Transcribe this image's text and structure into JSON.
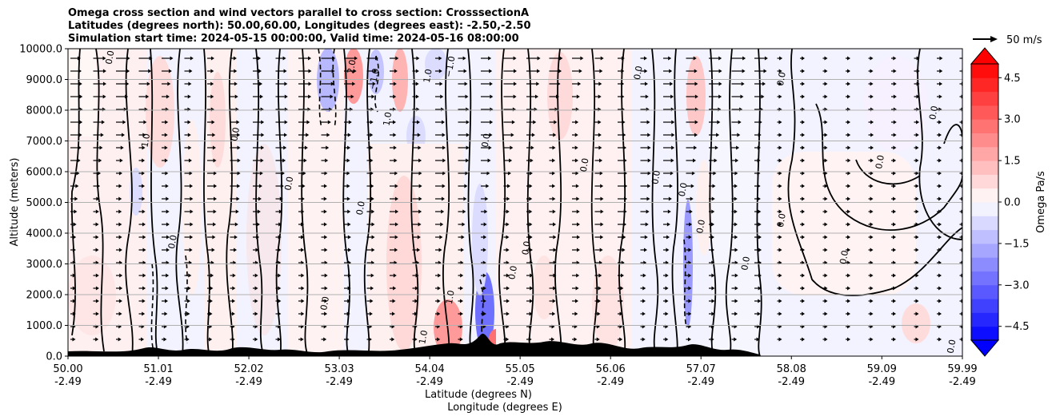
{
  "figure": {
    "title_lines": [
      "Omega cross section and wind vectors parallel to cross section: CrosssectionA",
      "Latitudes (degrees north): 50.00,60.00, Longitudes (degrees east): -2.50,-2.50",
      "Simulation start time: 2024-05-15 00:00:00, Valid time: 2024-05-16 08:00:00"
    ]
  },
  "chart_data": {
    "type": "heatmap",
    "title": "Omega cross section and wind vectors parallel to cross section: CrosssectionA",
    "xlabel_lines": [
      "Latitude (degrees N)",
      "Longitude (degrees E)"
    ],
    "ylabel": "Altitude (meters)",
    "xlim": [
      50.0,
      59.99
    ],
    "ylim": [
      0,
      10000
    ],
    "x_ticks": [
      {
        "lat": "50.00",
        "lon": "-2.49",
        "value": 50.0
      },
      {
        "lat": "51.01",
        "lon": "-2.49",
        "value": 51.01
      },
      {
        "lat": "52.02",
        "lon": "-2.49",
        "value": 52.02
      },
      {
        "lat": "53.03",
        "lon": "-2.49",
        "value": 53.03
      },
      {
        "lat": "54.04",
        "lon": "-2.49",
        "value": 54.04
      },
      {
        "lat": "55.05",
        "lon": "-2.49",
        "value": 55.05
      },
      {
        "lat": "56.06",
        "lon": "-2.49",
        "value": 56.06
      },
      {
        "lat": "57.07",
        "lon": "-2.49",
        "value": 57.07
      },
      {
        "lat": "58.08",
        "lon": "-2.49",
        "value": 58.08
      },
      {
        "lat": "59.09",
        "lon": "-2.49",
        "value": 59.09
      },
      {
        "lat": "59.99",
        "lon": "-2.49",
        "value": 59.99
      }
    ],
    "y_ticks": [
      {
        "label": "0.0",
        "value": 0
      },
      {
        "label": "1000.0",
        "value": 1000
      },
      {
        "label": "2000.0",
        "value": 2000
      },
      {
        "label": "3000.0",
        "value": 3000
      },
      {
        "label": "4000.0",
        "value": 4000
      },
      {
        "label": "5000.0",
        "value": 5000
      },
      {
        "label": "6000.0",
        "value": 6000
      },
      {
        "label": "7000.0",
        "value": 7000
      },
      {
        "label": "8000.0",
        "value": 8000
      },
      {
        "label": "9000.0",
        "value": 9000
      },
      {
        "label": "10000.0",
        "value": 10000
      }
    ],
    "grid": "horizontal",
    "colorbar": {
      "label": "Omega Pa/s",
      "range": [
        -5.0,
        5.0
      ],
      "extend": "both",
      "tick_labels": [
        {
          "label": "4.5",
          "value": 4.5
        },
        {
          "label": "3.0",
          "value": 3.0
        },
        {
          "label": "1.5",
          "value": 1.5
        },
        {
          "label": "0.0",
          "value": 0.0
        },
        {
          "label": "−1.5",
          "value": -1.5
        },
        {
          "label": "−3.0",
          "value": -3.0
        },
        {
          "label": "−4.5",
          "value": -4.5
        }
      ],
      "negative_color": "#0000ff",
      "positive_color": "#ff0000",
      "neutral_color": "#ffffff"
    },
    "quiver_key": {
      "label": "50 m/s",
      "magnitude": 50
    },
    "contour_labels": [
      {
        "text": "0.0",
        "x": 50.5,
        "y": 9700
      },
      {
        "text": "1.0",
        "x": 50.9,
        "y": 7000
      },
      {
        "text": "0.0",
        "x": 51.2,
        "y": 3700
      },
      {
        "text": "0.0",
        "x": 51.9,
        "y": 7200
      },
      {
        "text": "0.0",
        "x": 52.5,
        "y": 5600
      },
      {
        "text": "0.0",
        "x": 52.9,
        "y": 1700
      },
      {
        "text": "2.0",
        "x": 53.2,
        "y": 9400
      },
      {
        "text": "1.0",
        "x": 53.6,
        "y": 7700
      },
      {
        "text": "0.0",
        "x": 53.3,
        "y": 4800
      },
      {
        "text": "−1.0",
        "x": 53.45,
        "y": 9000
      },
      {
        "text": "1.0",
        "x": 54.05,
        "y": 9100
      },
      {
        "text": "−1.0",
        "x": 54.3,
        "y": 9400
      },
      {
        "text": "1.0",
        "x": 54.3,
        "y": 1900
      },
      {
        "text": "1.0",
        "x": 54.0,
        "y": 600
      },
      {
        "text": "0.0",
        "x": 54.7,
        "y": 7000
      },
      {
        "text": "0.0",
        "x": 55.15,
        "y": 3500
      },
      {
        "text": "0.0",
        "x": 55.0,
        "y": 2700
      },
      {
        "text": "0.0",
        "x": 55.8,
        "y": 6200
      },
      {
        "text": "0.0",
        "x": 56.4,
        "y": 9200
      },
      {
        "text": "0.0",
        "x": 56.6,
        "y": 5800
      },
      {
        "text": "0.0",
        "x": 56.9,
        "y": 5400
      },
      {
        "text": "0.0",
        "x": 57.1,
        "y": 4200
      },
      {
        "text": "0.0",
        "x": 57.6,
        "y": 3000
      },
      {
        "text": "0.0",
        "x": 58.0,
        "y": 9000
      },
      {
        "text": "0.0",
        "x": 58.0,
        "y": 4400
      },
      {
        "text": "0.0",
        "x": 58.7,
        "y": 3200
      },
      {
        "text": "0.0",
        "x": 59.1,
        "y": 6300
      },
      {
        "text": "0.0",
        "x": 59.7,
        "y": 7900
      },
      {
        "text": "0.0",
        "x": 59.9,
        "y": 300
      }
    ]
  }
}
